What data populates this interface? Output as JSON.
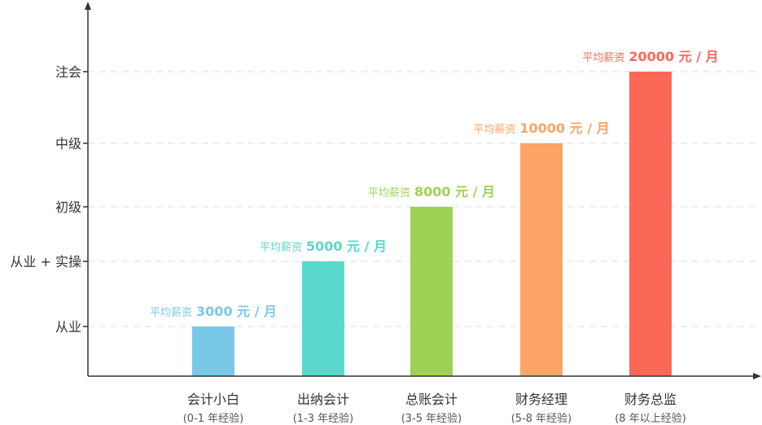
{
  "chart_data": {
    "type": "bar",
    "y_levels": [
      "从业",
      "从业 + 实操",
      "初级",
      "中级",
      "注会"
    ],
    "categories": [
      {
        "name": "会计小白",
        "sub": "(0-1 年经验)"
      },
      {
        "name": "出纳会计",
        "sub": "(1-3 年经验)"
      },
      {
        "name": "总账会计",
        "sub": "(3-5 年经验)"
      },
      {
        "name": "财务经理",
        "sub": "(5-8 年经验)"
      },
      {
        "name": "财务总监",
        "sub": "(8 年以上经验)"
      }
    ],
    "bars": [
      {
        "level": "从业",
        "prefix": "平均薪资",
        "value_label": "3000 元 / 月",
        "color": "#7ac8e8"
      },
      {
        "level": "从业 + 实操",
        "prefix": "平均薪资",
        "value_label": "5000 元 / 月",
        "color": "#5ad8cc"
      },
      {
        "level": "初级",
        "prefix": "平均薪资",
        "value_label": "8000 元 / 月",
        "color": "#9ed256"
      },
      {
        "level": "中级",
        "prefix": "平均薪资",
        "value_label": "10000 元 / 月",
        "color": "#fca466"
      },
      {
        "level": "注会",
        "prefix": "平均薪资",
        "value_label": "20000 元 / 月",
        "color": "#fc6858"
      }
    ],
    "grid": "dashed",
    "axis_color": "#333333"
  }
}
